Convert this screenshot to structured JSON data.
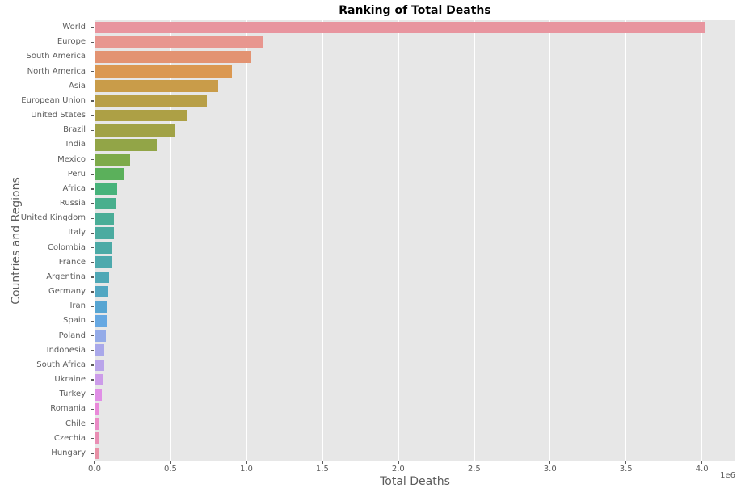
{
  "title": "Ranking of Total Deaths",
  "xaxis_label": "Total Deaths",
  "yaxis_label": "Countries and Regions",
  "offset_label": "1e6",
  "colors": {
    "plot_background": "#e7e7e7",
    "grid": "#ffffff",
    "tick_text": "#5c5c5c",
    "axis_label_text": "#5c5c5c",
    "title_text": "#000000"
  },
  "chart_data": {
    "type": "bar",
    "orientation": "horizontal",
    "title": "Ranking of Total Deaths",
    "xlabel": "Total Deaths",
    "ylabel": "Countries and Regions",
    "grid": true,
    "legend": false,
    "xlim": [
      0,
      4220000
    ],
    "x_unit_offset": "1e6",
    "xticks": [
      0,
      500000,
      1000000,
      1500000,
      2000000,
      2500000,
      3000000,
      3500000,
      4000000
    ],
    "xtick_labels": [
      "0.0",
      "0.5",
      "1.0",
      "1.5",
      "2.0",
      "2.5",
      "3.0",
      "3.5",
      "4.0"
    ],
    "categories": [
      "World",
      "Europe",
      "South America",
      "North America",
      "Asia",
      "European Union",
      "United States",
      "Brazil",
      "India",
      "Mexico",
      "Peru",
      "Africa",
      "Russia",
      "United Kingdom",
      "Italy",
      "Colombia",
      "France",
      "Argentina",
      "Germany",
      "Iran",
      "Spain",
      "Poland",
      "Indonesia",
      "South Africa",
      "Ukraine",
      "Turkey",
      "Romania",
      "Chile",
      "Czechia",
      "Hungary"
    ],
    "values": [
      4020000,
      1110000,
      1030000,
      905000,
      814000,
      740000,
      607000,
      532000,
      410000,
      234000,
      193000,
      149000,
      138000,
      128500,
      127800,
      112000,
      111000,
      96000,
      91000,
      85000,
      81000,
      75000,
      64000,
      62000,
      53000,
      50000,
      34000,
      33000,
      30300,
      30000
    ],
    "bar_colors": [
      "#e8959f",
      "#e8968f",
      "#e39372",
      "#db9851",
      "#c99c49",
      "#b89f47",
      "#ada045",
      "#a1a246",
      "#92a547",
      "#7eaa4a",
      "#5bb05b",
      "#47b37b",
      "#48af8d",
      "#4aad97",
      "#4baba0",
      "#4caaa6",
      "#4da9ad",
      "#4fa8b6",
      "#52a7c2",
      "#57a5d2",
      "#66a8e2",
      "#94abe8",
      "#a9a8ea",
      "#b9a4ea",
      "#cc9ce9",
      "#e08fe6",
      "#e989d9",
      "#ea8bc6",
      "#e98eb4",
      "#e891a6"
    ]
  }
}
